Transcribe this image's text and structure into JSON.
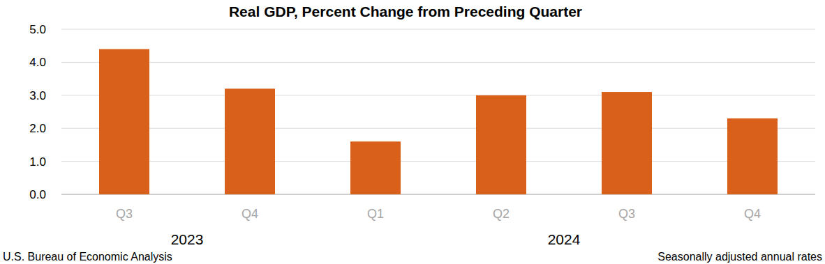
{
  "chart_data": {
    "type": "bar",
    "title": "Real GDP, Percent Change from Preceding Quarter",
    "categories": [
      "Q3",
      "Q4",
      "Q1",
      "Q2",
      "Q3",
      "Q4"
    ],
    "values": [
      4.4,
      3.2,
      1.6,
      3.0,
      3.1,
      2.3
    ],
    "color": "#d9601a",
    "ylim": [
      0,
      5
    ],
    "yticks": [
      {
        "value": 0,
        "label": "0.0"
      },
      {
        "value": 1,
        "label": "1.0"
      },
      {
        "value": 2,
        "label": "2.0"
      },
      {
        "value": 3,
        "label": "3.0"
      },
      {
        "value": 4,
        "label": "4.0"
      },
      {
        "value": 5,
        "label": "5.0"
      }
    ],
    "grid": true,
    "year_groups": [
      {
        "label": "2023",
        "count": 2
      },
      {
        "label": "2024",
        "count": 4
      }
    ],
    "source": "U.S. Bureau of Economic Analysis",
    "note": "Seasonally adjusted annual rates"
  }
}
